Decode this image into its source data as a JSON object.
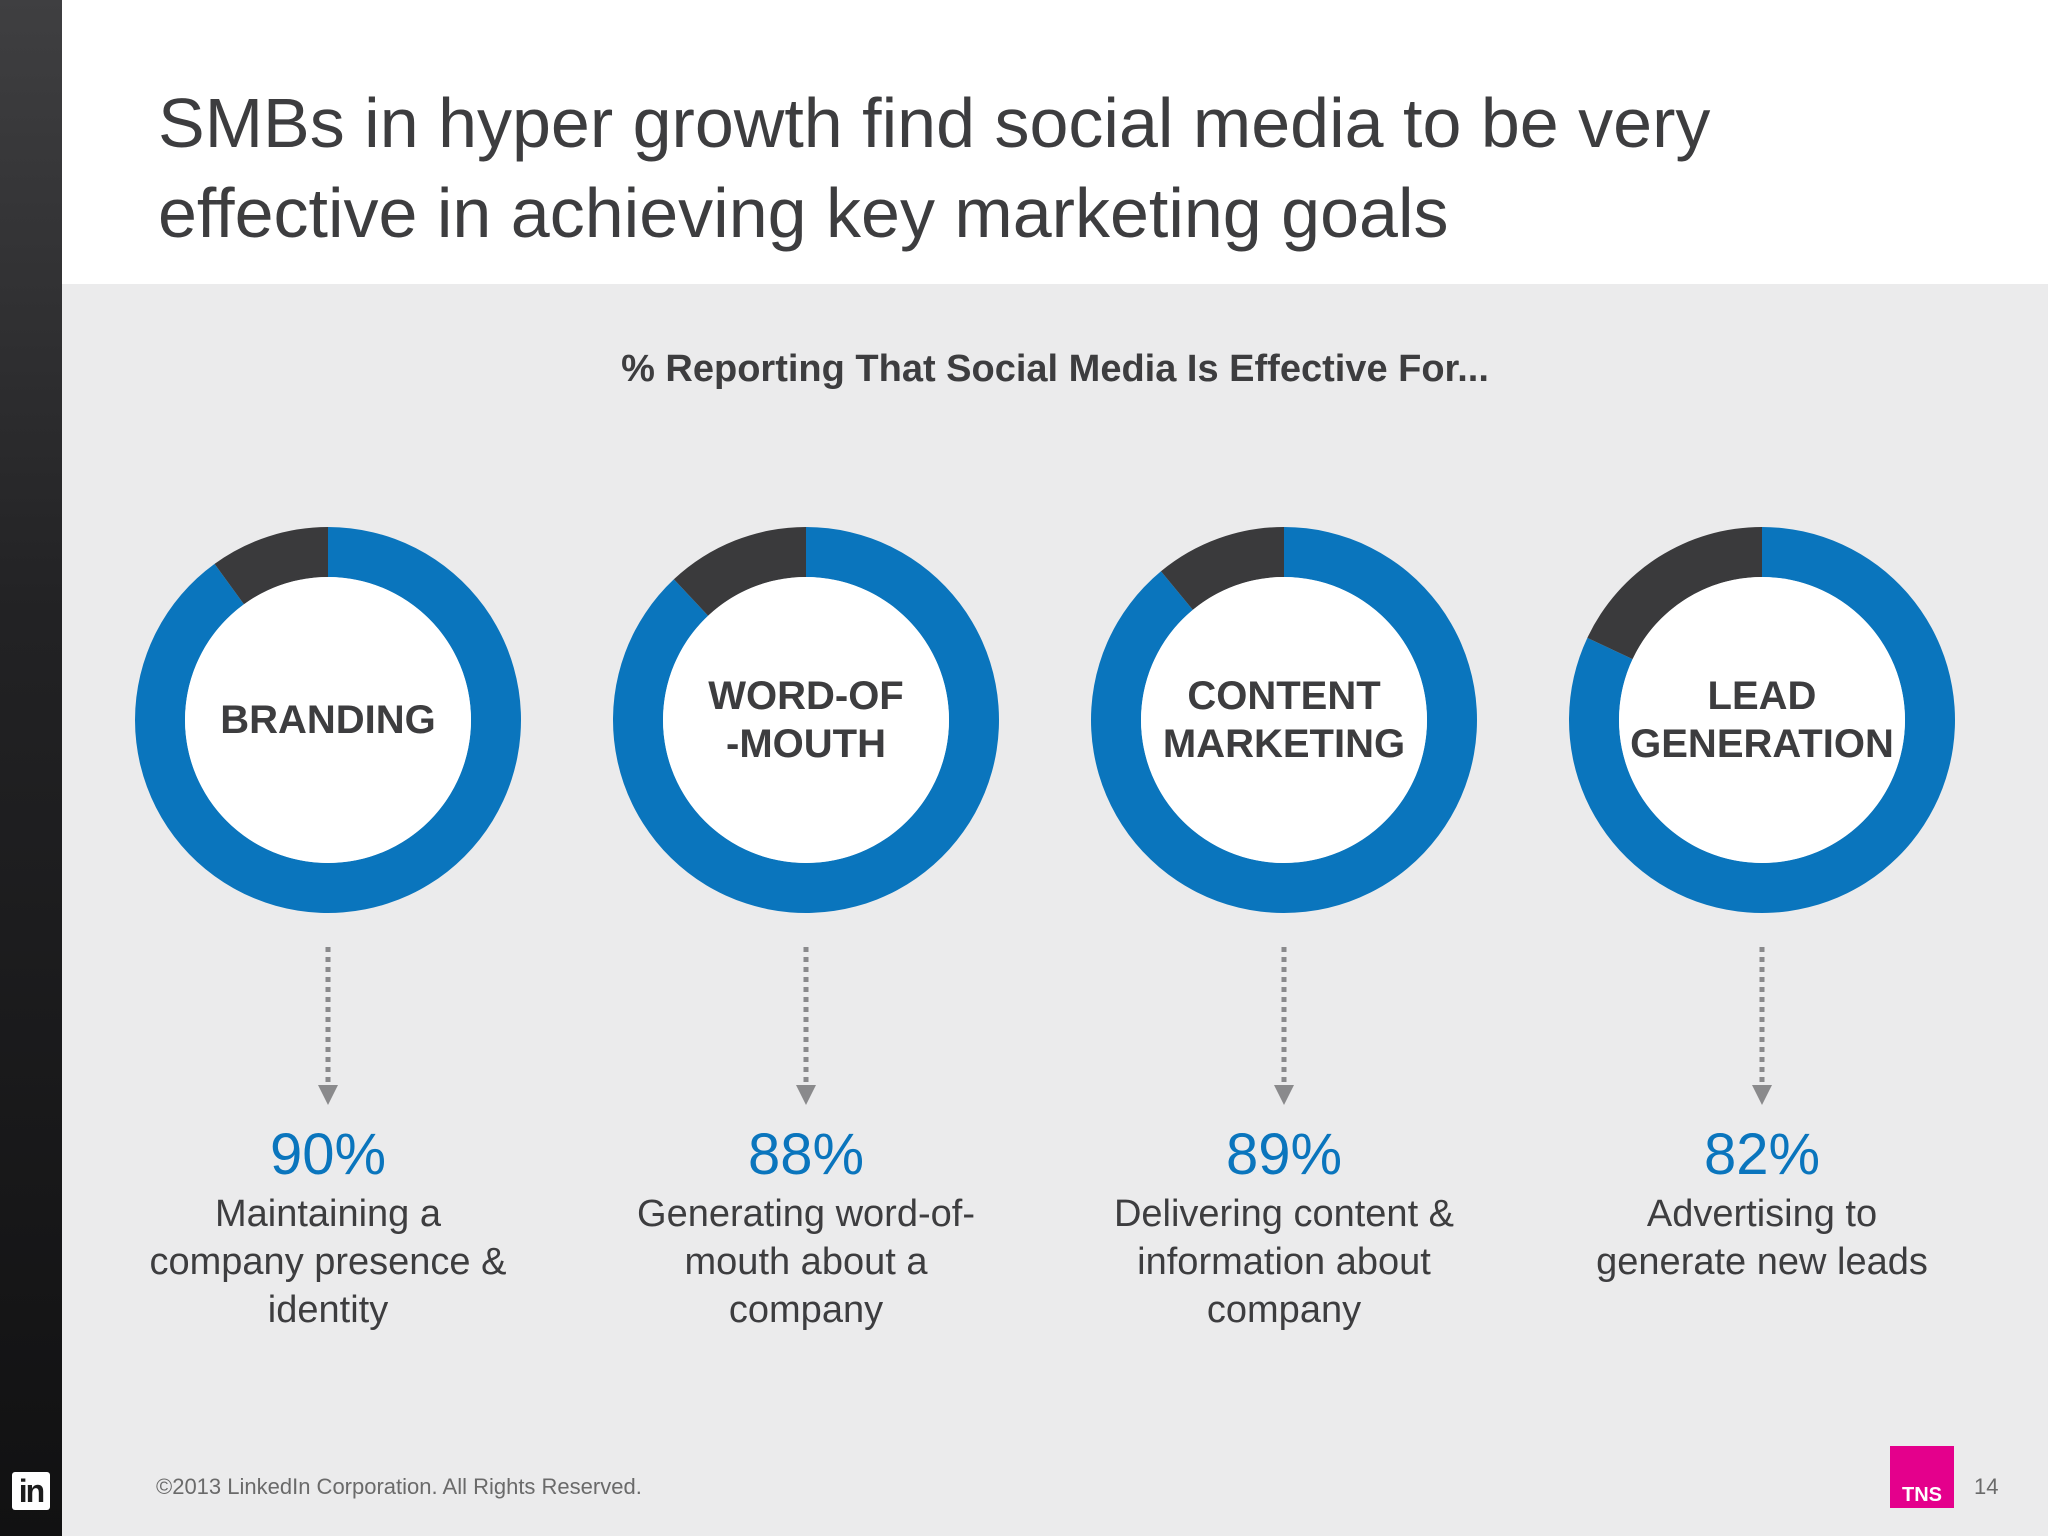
{
  "slide": {
    "title": "SMBs in hyper growth find social media to be very effective in achieving key marketing goals",
    "subtitle": "% Reporting That Social Media Is Effective For...",
    "footer": "©2013 LinkedIn Corporation. All Rights Reserved.",
    "page_number": "14",
    "linkedin_logo": "in",
    "tns_logo": "TNS"
  },
  "colors": {
    "accent": "#0a75bd",
    "remainder": "#3a3a3c",
    "text": "#3d3d3f"
  },
  "chart_data": {
    "type": "donut",
    "title": "% Reporting That Social Media Is Effective For...",
    "items": [
      {
        "label": "BRANDING",
        "value": 90,
        "value_label": "90%",
        "description": "Maintaining a\ncompany presence &\nidentity"
      },
      {
        "label": "WORD-OF\n-MOUTH",
        "value": 88,
        "value_label": "88%",
        "description": "Generating word-of-\nmouth about a\ncompany"
      },
      {
        "label": "CONTENT\nMARKETING",
        "value": 89,
        "value_label": "89%",
        "description": "Delivering content &\ninformation about\ncompany"
      },
      {
        "label": "LEAD\nGENERATION",
        "value": 82,
        "value_label": "82%",
        "description": "Advertising to\ngenerate new leads"
      }
    ]
  }
}
